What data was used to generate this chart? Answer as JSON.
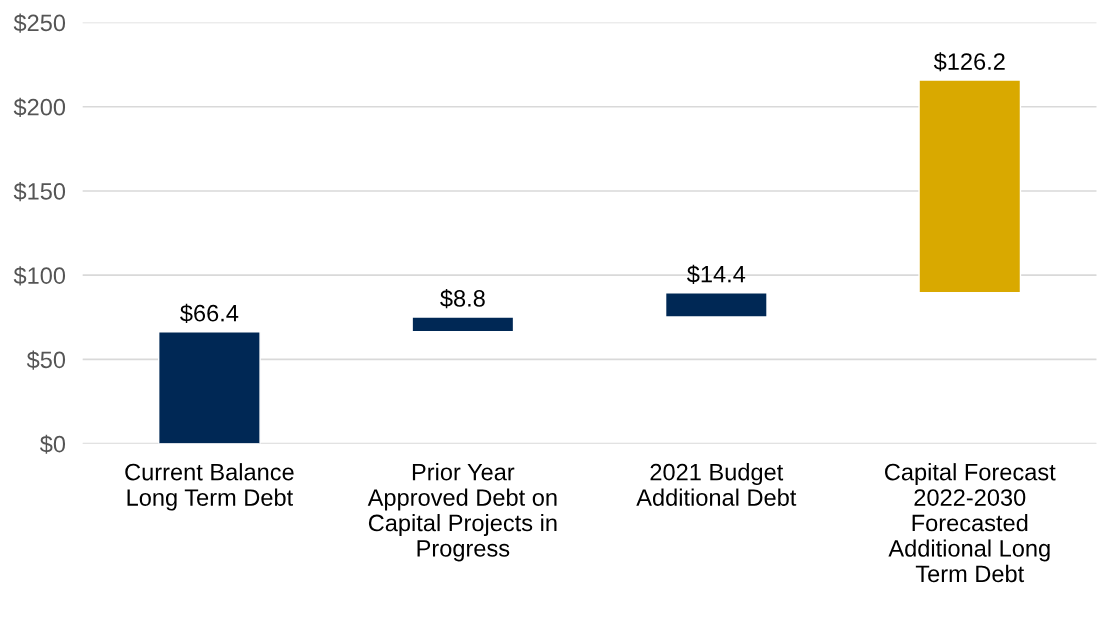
{
  "chart_data": {
    "type": "bar",
    "categories": [
      "Current Balance\nLong Term Debt",
      "Prior Year\nApproved Debt on\nCapital Projects in\nProgress",
      "2021 Budget\nAdditional Debt",
      "Capital Forecast\n2022-2030\nForecasted\nAdditional Long\nTerm Debt"
    ],
    "values": [
      66.4,
      8.8,
      14.4,
      126.2
    ],
    "base": [
      0,
      66.4,
      75.2,
      89.6
    ],
    "colors": [
      "#002855",
      "#002855",
      "#002855",
      "#d9a900"
    ],
    "value_labels": [
      "$66.4",
      "$8.8",
      "$14.4",
      "$126.2"
    ],
    "ylim": [
      0,
      250
    ],
    "yticks": [
      {
        "value": 0,
        "label": "$0"
      },
      {
        "value": 50,
        "label": "$50"
      },
      {
        "value": 100,
        "label": "$100"
      },
      {
        "value": 150,
        "label": "$150"
      },
      {
        "value": 200,
        "label": "$200"
      },
      {
        "value": 250,
        "label": "$250"
      }
    ],
    "grid": "y",
    "legend": false
  }
}
